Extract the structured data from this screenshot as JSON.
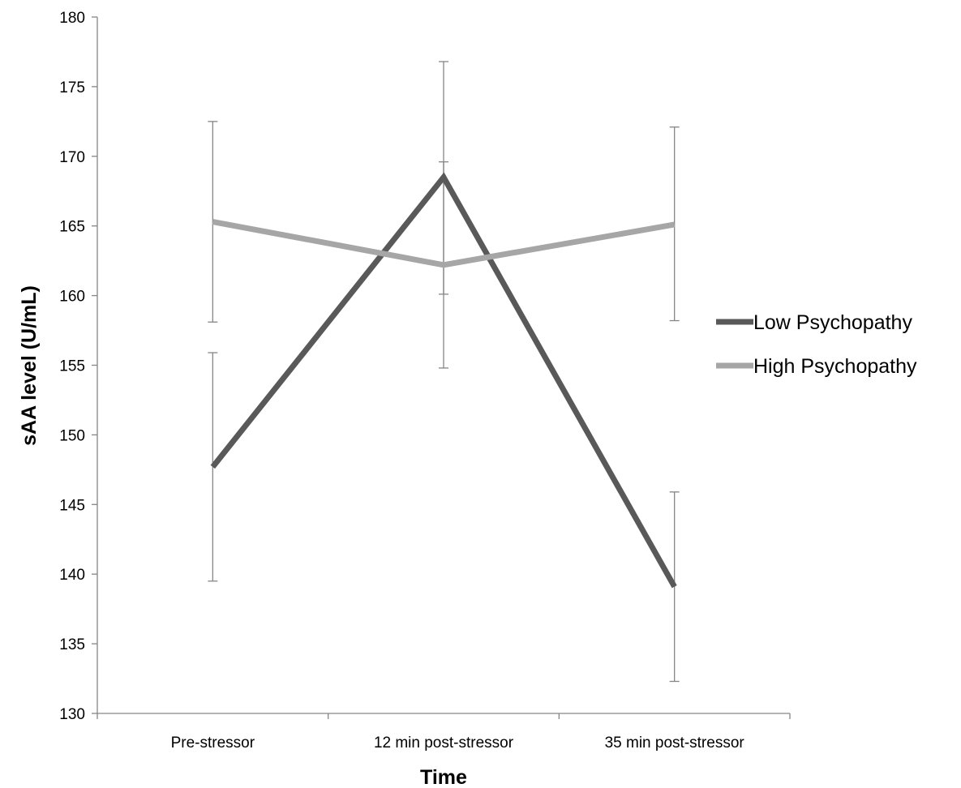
{
  "chart_data": {
    "type": "line",
    "categories": [
      "Pre-stressor",
      "12 min post-stressor",
      "35 min post-stressor"
    ],
    "xlabel": "Time",
    "ylabel": "sAA level (U/mL)",
    "ylim": [
      130,
      180
    ],
    "yticks": [
      130,
      135,
      140,
      145,
      150,
      155,
      160,
      165,
      170,
      175,
      180
    ],
    "grid": false,
    "legend_position": "right",
    "series": [
      {
        "name": "Low Psychopathy",
        "color": "#595959",
        "values": [
          147.7,
          168.5,
          139.1
        ],
        "error_low": [
          139.5,
          160.1,
          132.3
        ],
        "error_high": [
          155.9,
          176.8,
          145.9
        ]
      },
      {
        "name": "High Psychopathy",
        "color": "#a6a6a6",
        "values": [
          165.3,
          162.2,
          165.1
        ],
        "error_low": [
          158.1,
          154.8,
          158.2
        ],
        "error_high": [
          172.5,
          169.6,
          172.1
        ]
      }
    ],
    "axis_color": "#868686",
    "error_bar_color": "#868686"
  }
}
